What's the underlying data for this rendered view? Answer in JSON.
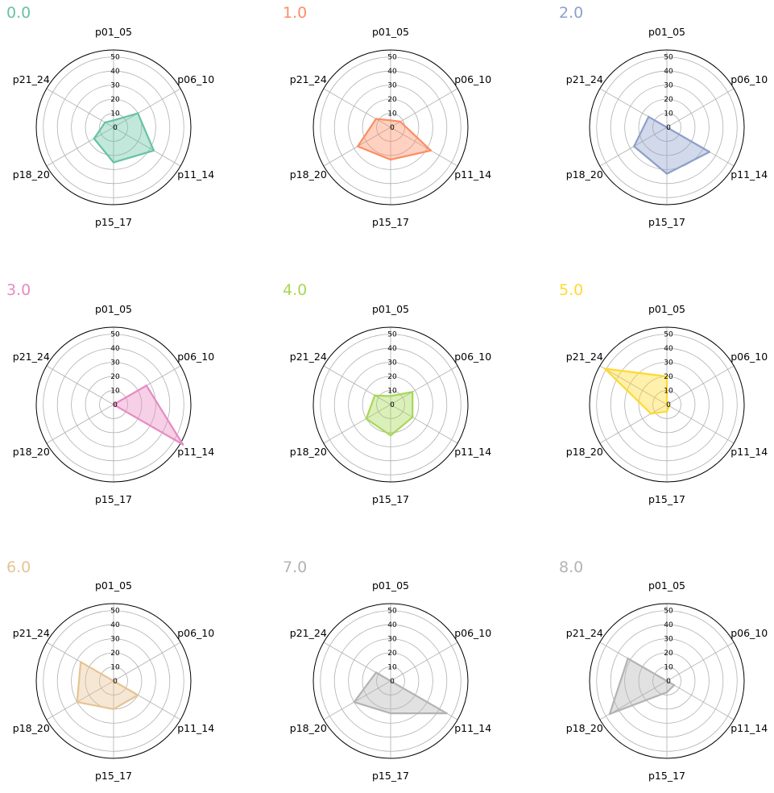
{
  "chart_data": {
    "type": "radar",
    "axes": [
      "p01_05",
      "p06_10",
      "p11_14",
      "p15_17",
      "p18_20",
      "p21_24"
    ],
    "rlim": [
      0,
      55
    ],
    "rticks": [
      0,
      10,
      20,
      30,
      40,
      50
    ],
    "rtick_labels": [
      "0",
      "10",
      "20",
      "30",
      "40",
      "50"
    ],
    "grid": true,
    "panels": [
      {
        "title": "0.0",
        "color": "#66c2a5",
        "values": [
          5,
          20,
          33,
          25,
          16,
          7
        ]
      },
      {
        "title": "1.0",
        "color": "#fc8d62",
        "values": [
          5,
          8,
          33,
          23,
          27,
          12
        ]
      },
      {
        "title": "2.0",
        "color": "#8da0cb",
        "values": [
          0,
          0,
          35,
          33,
          27,
          15
        ]
      },
      {
        "title": "3.0",
        "color": "#e78ac3",
        "values": [
          0,
          27,
          57,
          0,
          0,
          0
        ]
      },
      {
        "title": "4.0",
        "color": "#a6d854",
        "values": [
          6,
          18,
          18,
          22,
          20,
          13
        ]
      },
      {
        "title": "5.0",
        "color": "#ffd92f",
        "values": [
          20,
          0,
          2,
          5,
          13,
          51
        ]
      },
      {
        "title": "6.0",
        "color": "#e5c494",
        "values": [
          0,
          0,
          20,
          20,
          30,
          27
        ]
      },
      {
        "title": "7.0",
        "color": "#b3b3b3",
        "values": [
          0,
          0,
          46,
          23,
          30,
          12
        ]
      },
      {
        "title": "8.0",
        "color": "#b3b3b3",
        "values": [
          0,
          0,
          6,
          8,
          47,
          32
        ]
      }
    ]
  }
}
